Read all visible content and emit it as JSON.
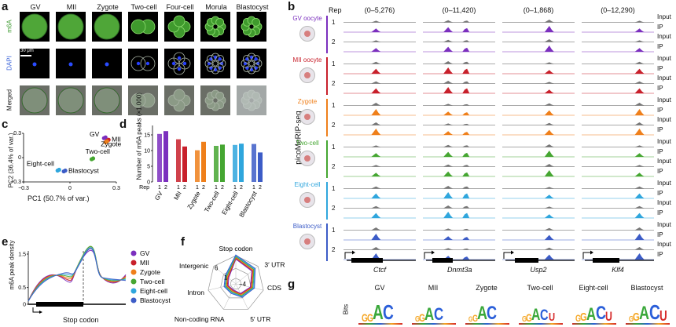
{
  "panel_labels": {
    "a": "a",
    "b": "b",
    "c": "c",
    "d": "d",
    "e": "e",
    "f": "f",
    "g": "g"
  },
  "stages": [
    "GV",
    "MII",
    "Zygote",
    "Two-cell",
    "Four-cell",
    "Morula",
    "Blastocyst"
  ],
  "rows": [
    "m6A",
    "DAPI",
    "Merged"
  ],
  "scale_bar": "30 μm",
  "panel_c": {
    "xlabel": "PC1 (50.7% of var.)",
    "ylabel": "PC2 (36.4% of var.)",
    "xticks": [
      "−0.3",
      "0",
      "0.3"
    ],
    "yticks": [
      "−0.3",
      "0",
      "0.3"
    ],
    "point_labels": [
      "GV",
      "MII",
      "Zygote",
      "Two-cell",
      "Eight-cell",
      "Blastocyst"
    ]
  },
  "panel_d": {
    "ylabel": "Number of m6A peaks (×1,000)",
    "yticks": [
      "0",
      "5",
      "10",
      "15"
    ],
    "rep_label": "Rep",
    "rep_numbers": [
      "1",
      "2"
    ],
    "categories": [
      "GV",
      "MII",
      "Zygote",
      "Two-cell",
      "Eight-cell",
      "Blastocyst"
    ]
  },
  "panel_e": {
    "ylabel": "m6A peak density",
    "yticks": [
      "0",
      "0.5",
      "1.5"
    ],
    "xlabel": "Stop codon",
    "legend": [
      "GV",
      "MII",
      "Zygote",
      "Two-cell",
      "Eight-cell",
      "Blastocyst"
    ]
  },
  "panel_f": {
    "axes": [
      "Stop codon",
      "3′ UTR",
      "CDS",
      "5′ UTR",
      "Non-coding RNA",
      "Intron",
      "Intergenic"
    ],
    "rings": [
      "6",
      "1",
      "−4"
    ]
  },
  "panel_b": {
    "rep_header": "Rep",
    "side_title": "picoMeRIP-seq",
    "ranges": [
      "(0–5,276)",
      "(0–11,420)",
      "(0–1,868)",
      "(0–12,290)"
    ],
    "stages": [
      "GV oocyte",
      "MII oocyte",
      "Zygote",
      "Two-cell",
      "Eight-cell",
      "Blastocyst"
    ],
    "rep_numbers": [
      "1",
      "2"
    ],
    "track_types": [
      "Input",
      "IP"
    ],
    "genes": [
      "Ctcf",
      "Dnmt3a",
      "Usp2",
      "Klf4"
    ]
  },
  "panel_g": {
    "ylabel": "Bits",
    "stages": [
      "GV",
      "MII",
      "Zygote",
      "Two-cell",
      "Eight-cell",
      "Blastocyst"
    ]
  },
  "chart_data": [
    {
      "type": "scatter",
      "title": "",
      "xlabel": "PC1 (50.7% of var.)",
      "ylabel": "PC2 (36.4% of var.)",
      "xlim": [
        -0.3,
        0.3
      ],
      "ylim": [
        -0.3,
        0.3
      ],
      "series": [
        {
          "name": "GV",
          "x": [
            0.22,
            0.23
          ],
          "y": [
            0.24,
            0.25
          ]
        },
        {
          "name": "MII",
          "x": [
            0.24,
            0.25
          ],
          "y": [
            0.21,
            0.22
          ]
        },
        {
          "name": "Zygote",
          "x": [
            0.23,
            0.24
          ],
          "y": [
            0.19,
            0.2
          ]
        },
        {
          "name": "Two-cell",
          "x": [
            0.14,
            0.15
          ],
          "y": [
            -0.02,
            -0.01
          ]
        },
        {
          "name": "Eight-cell",
          "x": [
            -0.08,
            -0.07
          ],
          "y": [
            -0.16,
            -0.15
          ]
        },
        {
          "name": "Blastocyst",
          "x": [
            -0.04,
            -0.03
          ],
          "y": [
            -0.17,
            -0.16
          ]
        }
      ]
    },
    {
      "type": "bar",
      "title": "",
      "ylabel": "Number of m6A peaks (×1,000)",
      "ylim": [
        0,
        18
      ],
      "categories": [
        "GV",
        "MII",
        "Zygote",
        "Two-cell",
        "Eight-cell",
        "Blastocyst"
      ],
      "series": [
        {
          "name": "1",
          "values": [
            15.3,
            13.6,
            10.1,
            11.5,
            11.8,
            12.1
          ]
        },
        {
          "name": "2",
          "values": [
            16.2,
            11.3,
            12.8,
            11.9,
            12.2,
            9.4
          ]
        }
      ]
    }
  ],
  "colors": {
    "GV": "#7b2fbe",
    "MII": "#c8202b",
    "Zygote": "#ef7f1a",
    "Two-cell": "#45a631",
    "Eight-cell": "#2fa6dd",
    "Blastocyst": "#3c5cc7",
    "input": "#555555"
  }
}
